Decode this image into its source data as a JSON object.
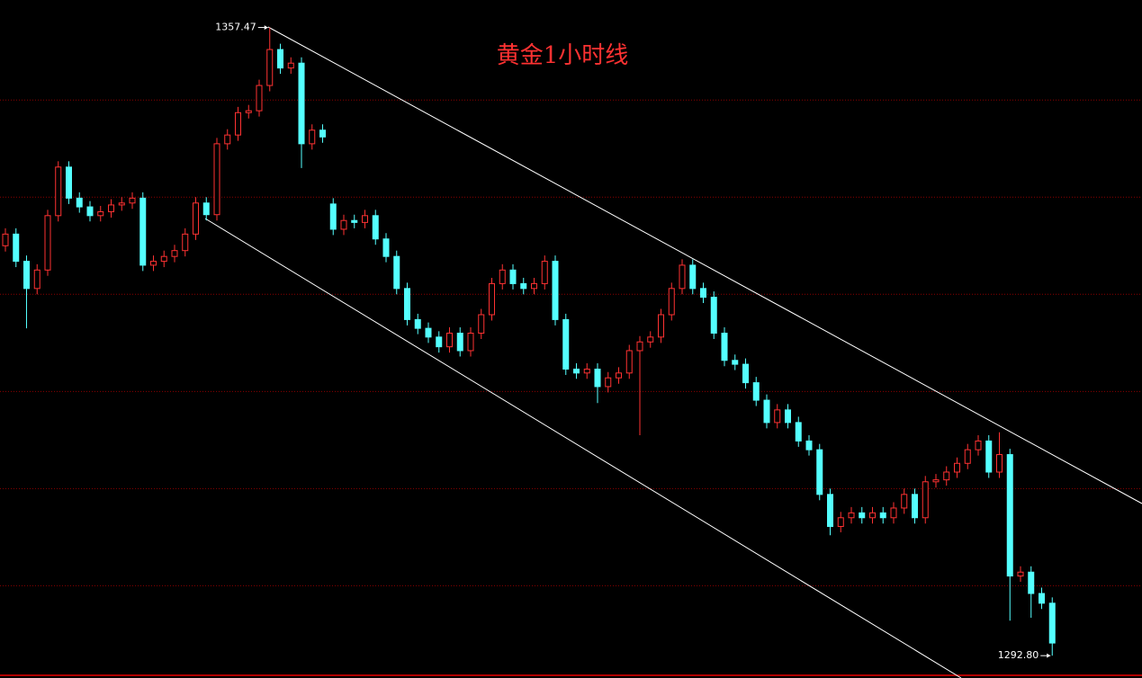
{
  "chart_data": {
    "type": "candlestick",
    "title": "黄金1小时线",
    "open": [
      1335,
      1336.2,
      1333.4,
      1330.6,
      1332.5,
      1338.1,
      1343.1,
      1339.9,
      1339.0,
      1338.1,
      1338.5,
      1339.2,
      1339.4,
      1339.9,
      1333.0,
      1333.4,
      1333.9,
      1334.5,
      1336.2,
      1339.4,
      1338.2,
      1345.5,
      1346.4,
      1348.7,
      1348.9,
      1351.5,
      1355.2,
      1353.3,
      1353.8,
      1345.5,
      1346.9,
      1339.3,
      1336.7,
      1337.6,
      1337.4,
      1338.1,
      1335.7,
      1333.9,
      1330.6,
      1327.4,
      1326.5,
      1325.6,
      1324.6,
      1326.0,
      1324.2,
      1326.0,
      1327.9,
      1331.1,
      1332.5,
      1331.1,
      1330.6,
      1331.1,
      1333.4,
      1327.4,
      1322.3,
      1321.9,
      1322.3,
      1320.5,
      1321.4,
      1321.9,
      1324.2,
      1325.1,
      1325.6,
      1327.9,
      1330.6,
      1333.0,
      1330.6,
      1329.7,
      1326.0,
      1323.2,
      1322.8,
      1320.9,
      1319.1,
      1316.8,
      1318.1,
      1316.8,
      1314.9,
      1314.0,
      1309.4,
      1306.1,
      1307.0,
      1307.5,
      1307.0,
      1307.5,
      1307.0,
      1308.0,
      1309.4,
      1307.0,
      1310.7,
      1310.9,
      1311.7,
      1312.6,
      1314.0,
      1314.9,
      1311.7,
      1313.5,
      1301.0,
      1301.4,
      1299.2,
      1298.2
    ],
    "high": [
      1336.8,
      1336.8,
      1334.0,
      1333.1,
      1338.7,
      1343.7,
      1343.7,
      1340.5,
      1339.6,
      1339.1,
      1339.8,
      1340.0,
      1340.5,
      1340.5,
      1334.0,
      1334.5,
      1335.1,
      1336.8,
      1340.0,
      1340.0,
      1346.1,
      1347.0,
      1349.3,
      1349.5,
      1352.1,
      1357.47,
      1355.8,
      1354.4,
      1354.4,
      1347.5,
      1347.5,
      1339.9,
      1338.2,
      1338.2,
      1338.7,
      1338.7,
      1336.3,
      1334.5,
      1331.2,
      1328.0,
      1327.1,
      1326.2,
      1326.6,
      1326.6,
      1326.6,
      1328.5,
      1331.7,
      1333.1,
      1333.1,
      1331.7,
      1331.7,
      1334.0,
      1334.0,
      1328.0,
      1322.9,
      1322.9,
      1322.9,
      1322.0,
      1322.5,
      1324.8,
      1325.7,
      1326.2,
      1328.5,
      1331.2,
      1333.6,
      1333.6,
      1331.2,
      1330.3,
      1326.6,
      1323.8,
      1323.4,
      1321.5,
      1319.7,
      1318.7,
      1318.7,
      1317.4,
      1315.5,
      1314.6,
      1310.0,
      1307.6,
      1308.1,
      1308.1,
      1308.1,
      1308.1,
      1308.6,
      1310.0,
      1310.0,
      1311.3,
      1311.5,
      1312.3,
      1313.2,
      1314.6,
      1315.5,
      1315.5,
      1315.8,
      1314.1,
      1302.0,
      1302.0,
      1299.8,
      1298.8
    ],
    "low": [
      1334.4,
      1332.8,
      1326.5,
      1330.0,
      1331.9,
      1337.5,
      1339.3,
      1338.4,
      1337.5,
      1337.5,
      1337.9,
      1338.6,
      1338.8,
      1332.4,
      1332.4,
      1332.8,
      1333.3,
      1333.9,
      1335.6,
      1337.6,
      1337.6,
      1344.9,
      1345.8,
      1348.1,
      1348.3,
      1350.9,
      1352.7,
      1352.7,
      1343.0,
      1344.9,
      1345.6,
      1336.1,
      1336.1,
      1336.8,
      1336.8,
      1335.1,
      1333.3,
      1330.0,
      1326.8,
      1325.9,
      1325.0,
      1324.0,
      1324.0,
      1323.6,
      1323.6,
      1325.4,
      1327.3,
      1330.5,
      1330.5,
      1330.0,
      1330.0,
      1330.5,
      1326.8,
      1321.7,
      1321.3,
      1321.3,
      1318.8,
      1319.9,
      1320.8,
      1321.3,
      1315.5,
      1324.5,
      1325.0,
      1327.3,
      1330.0,
      1330.0,
      1329.1,
      1325.4,
      1322.6,
      1322.2,
      1320.3,
      1318.5,
      1316.2,
      1316.2,
      1316.2,
      1314.3,
      1313.4,
      1308.8,
      1305.2,
      1305.5,
      1306.4,
      1306.4,
      1306.4,
      1306.4,
      1306.4,
      1307.4,
      1306.4,
      1306.4,
      1310.1,
      1310.3,
      1311.1,
      1312.0,
      1313.4,
      1311.1,
      1311.1,
      1296.4,
      1300.4,
      1296.7,
      1297.6,
      1292.8
    ],
    "close": [
      1336.2,
      1333.4,
      1330.6,
      1332.5,
      1338.1,
      1343.1,
      1339.9,
      1339.0,
      1338.1,
      1338.5,
      1339.2,
      1339.4,
      1339.9,
      1333.0,
      1333.4,
      1333.9,
      1334.5,
      1336.2,
      1339.4,
      1338.2,
      1345.5,
      1346.4,
      1348.7,
      1348.9,
      1351.5,
      1355.2,
      1353.3,
      1353.8,
      1345.5,
      1346.9,
      1346.2,
      1336.7,
      1337.6,
      1337.4,
      1338.1,
      1335.7,
      1333.9,
      1330.6,
      1327.4,
      1326.5,
      1325.6,
      1324.6,
      1326.0,
      1324.2,
      1326.0,
      1327.9,
      1331.1,
      1332.5,
      1331.1,
      1330.6,
      1331.1,
      1333.4,
      1327.4,
      1322.3,
      1321.9,
      1322.3,
      1320.5,
      1321.4,
      1321.9,
      1324.2,
      1325.1,
      1325.6,
      1327.9,
      1330.6,
      1333.0,
      1330.6,
      1329.7,
      1326.0,
      1323.2,
      1322.8,
      1320.9,
      1319.1,
      1316.8,
      1318.1,
      1316.8,
      1314.9,
      1314.0,
      1309.4,
      1306.1,
      1307.0,
      1307.5,
      1307.0,
      1307.5,
      1307.0,
      1308.0,
      1309.4,
      1307.0,
      1310.7,
      1310.9,
      1311.7,
      1312.6,
      1314.0,
      1314.9,
      1311.7,
      1313.5,
      1301.0,
      1301.4,
      1299.2,
      1298.2,
      1294.1
    ],
    "up_color": "#ff3232",
    "down_color": "#54ffff",
    "ylim": [
      1290.5,
      1360.3
    ],
    "yticks": [
      1300,
      1310,
      1320,
      1330,
      1340,
      1350
    ],
    "grid": true,
    "grid_color": "#8b0000",
    "annotations": [
      {
        "label": "1357.47",
        "value": 1357.47
      },
      {
        "label": "1292.80",
        "value": 1292.8
      }
    ]
  }
}
